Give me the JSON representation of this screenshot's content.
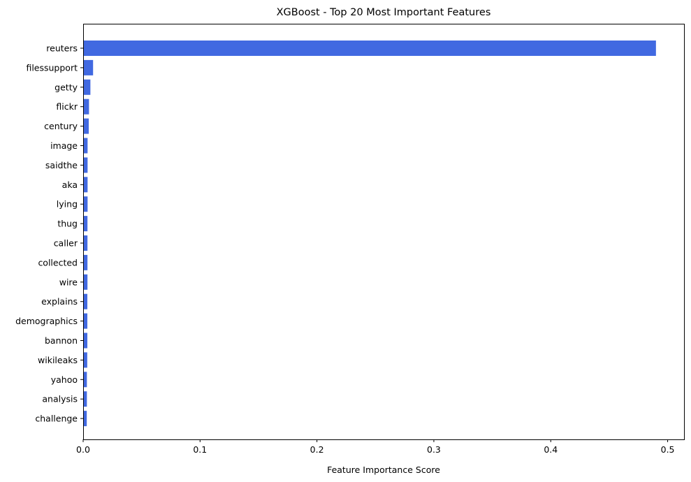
{
  "chart_data": {
    "type": "bar",
    "orientation": "horizontal",
    "title": "XGBoost - Top 20 Most Important Features",
    "xlabel": "Feature Importance Score",
    "ylabel": "",
    "xlim": [
      0,
      0.514
    ],
    "x_ticks": [
      {
        "value": 0,
        "label": "0.0"
      },
      {
        "value": 0.1,
        "label": "0.1"
      },
      {
        "value": 0.2,
        "label": "0.2"
      },
      {
        "value": 0.3,
        "label": "0.3"
      },
      {
        "value": 0.4,
        "label": "0.4"
      },
      {
        "value": 0.5,
        "label": "0.5"
      }
    ],
    "grid": false,
    "bar_color": "#4169e1",
    "categories": [
      "reuters",
      "filessupport",
      "getty",
      "flickr",
      "century",
      "image",
      "saidthe",
      "aka",
      "lying",
      "thug",
      "caller",
      "collected",
      "wire",
      "explains",
      "demographics",
      "bannon",
      "wikileaks",
      "yahoo",
      "analysis",
      "challenge"
    ],
    "values": [
      0.49,
      0.0085,
      0.0062,
      0.005,
      0.0048,
      0.0038,
      0.0038,
      0.0038,
      0.0038,
      0.0037,
      0.0037,
      0.0037,
      0.0037,
      0.0036,
      0.0036,
      0.0036,
      0.0035,
      0.0032,
      0.0032,
      0.0031
    ]
  }
}
